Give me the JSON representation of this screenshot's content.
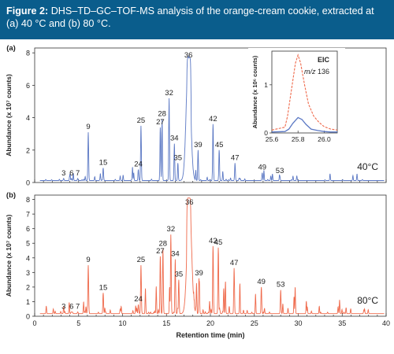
{
  "caption": {
    "label": "Figure 2:",
    "text": "DHS–TD–GC–TOF-MS analysis of the orange-cream cookie, extracted at (a) 40 °C and (b) 80 °C."
  },
  "colors": {
    "caption_bg": "#0a5d8c",
    "trace_a": "#5b78c4",
    "trace_b": "#ef6a4c"
  },
  "chart_data": [
    {
      "type": "line",
      "panel": "(a)",
      "condition": "40°C",
      "xlabel": "Retention time (min)",
      "ylabel": "Abundance (x 10⁷ counts)",
      "xlim": [
        0,
        40
      ],
      "ylim": [
        0,
        8.3
      ],
      "yticks": [
        0,
        2,
        4,
        6,
        8
      ],
      "xticks": [
        0,
        5,
        10,
        15,
        20,
        25,
        30,
        35,
        40
      ],
      "peaks": [
        {
          "label": "3",
          "x": 3.3,
          "y": 0.25
        },
        {
          "label": "6",
          "x": 4.2,
          "y": 0.25
        },
        {
          "label": "7",
          "x": 4.9,
          "y": 0.25
        },
        {
          "label": "9",
          "x": 6.1,
          "y": 3.1
        },
        {
          "label": "15",
          "x": 7.8,
          "y": 0.9
        },
        {
          "label": "24",
          "x": 11.8,
          "y": 0.8
        },
        {
          "label": "25",
          "x": 12.1,
          "y": 3.5
        },
        {
          "label": "27",
          "x": 14.3,
          "y": 3.4
        },
        {
          "label": "28",
          "x": 14.5,
          "y": 3.9
        },
        {
          "label": "32",
          "x": 15.3,
          "y": 5.2
        },
        {
          "label": "34",
          "x": 15.9,
          "y": 2.4
        },
        {
          "label": "35",
          "x": 16.3,
          "y": 1.2
        },
        {
          "label": "36",
          "x": 17.5,
          "y": 7.8
        },
        {
          "label": "39",
          "x": 18.6,
          "y": 2.0
        },
        {
          "label": "42",
          "x": 20.3,
          "y": 3.6
        },
        {
          "label": "45",
          "x": 21.0,
          "y": 2.0
        },
        {
          "label": "47",
          "x": 22.8,
          "y": 1.2
        },
        {
          "label": "49",
          "x": 25.9,
          "y": 0.6
        },
        {
          "label": "53",
          "x": 27.9,
          "y": 0.4
        }
      ],
      "inset": {
        "title": "EIC",
        "subtitle_italic": "m/z",
        "subtitle_value": "136",
        "xlim": [
          25.6,
          26.1
        ],
        "ylim": [
          0,
          1.7
        ],
        "xticks": [
          25.6,
          25.8,
          26.0
        ],
        "yticks": [
          0,
          1
        ],
        "ylabel": "Abundance (x 10⁶ counts)",
        "series": [
          {
            "name": "80 °C",
            "x": [
              25.6,
              25.7,
              25.72,
              25.75,
              25.78,
              25.8,
              25.82,
              25.85,
              25.88,
              25.92,
              25.96,
              26.0,
              26.05,
              26.1
            ],
            "y": [
              0.06,
              0.12,
              0.35,
              0.9,
              1.45,
              1.62,
              1.45,
              1.0,
              0.6,
              0.35,
              0.22,
              0.13,
              0.08,
              0.06
            ]
          },
          {
            "name": "40 °C",
            "x": [
              25.6,
              25.7,
              25.73,
              25.76,
              25.8,
              25.83,
              25.86,
              25.9,
              25.95,
              26.0,
              26.05,
              26.1
            ],
            "y": [
              0.02,
              0.03,
              0.08,
              0.2,
              0.32,
              0.28,
              0.18,
              0.08,
              0.05,
              0.03,
              0.02,
              0.02
            ]
          }
        ]
      }
    },
    {
      "type": "line",
      "panel": "(b)",
      "condition": "80°C",
      "xlabel": "Retention time (min)",
      "ylabel": "Abundance (x 10⁷ counts)",
      "xlim": [
        0,
        40
      ],
      "ylim": [
        0,
        8.3
      ],
      "yticks": [
        0,
        1,
        2,
        3,
        4,
        5,
        6,
        7,
        8
      ],
      "xticks": [
        0,
        5,
        10,
        15,
        20,
        25,
        30,
        35,
        40
      ],
      "peaks": [
        {
          "label": "3",
          "x": 3.3,
          "y": 0.3
        },
        {
          "label": "6",
          "x": 4.2,
          "y": 0.3
        },
        {
          "label": "7",
          "x": 4.9,
          "y": 0.3
        },
        {
          "label": "9",
          "x": 6.1,
          "y": 3.5
        },
        {
          "label": "15",
          "x": 7.8,
          "y": 1.6
        },
        {
          "label": "24",
          "x": 11.8,
          "y": 0.8
        },
        {
          "label": "25",
          "x": 12.1,
          "y": 3.5
        },
        {
          "label": "27",
          "x": 14.3,
          "y": 4.1
        },
        {
          "label": "28",
          "x": 14.6,
          "y": 4.6
        },
        {
          "label": "32",
          "x": 15.5,
          "y": 5.6
        },
        {
          "label": "34",
          "x": 16.0,
          "y": 3.9
        },
        {
          "label": "35",
          "x": 16.4,
          "y": 2.5
        },
        {
          "label": "36",
          "x": 17.6,
          "y": 8.1
        },
        {
          "label": "39",
          "x": 18.7,
          "y": 2.6
        },
        {
          "label": "42",
          "x": 20.3,
          "y": 4.8
        },
        {
          "label": "45",
          "x": 20.9,
          "y": 4.7
        },
        {
          "label": "47",
          "x": 22.7,
          "y": 3.3
        },
        {
          "label": "49",
          "x": 25.8,
          "y": 2.0
        },
        {
          "label": "53",
          "x": 28.0,
          "y": 1.8
        }
      ]
    }
  ]
}
